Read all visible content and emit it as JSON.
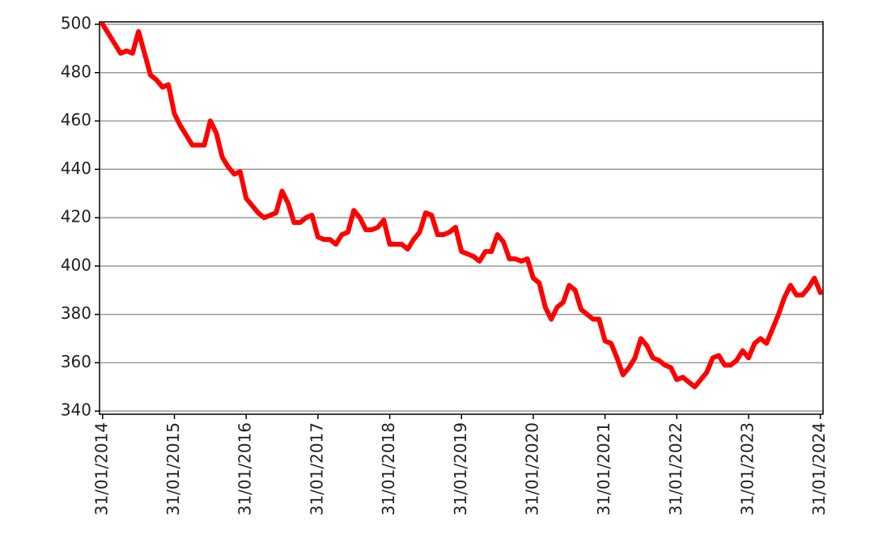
{
  "chart_data": {
    "type": "line",
    "x": [
      2014.083,
      2014.167,
      2014.25,
      2014.333,
      2014.417,
      2014.5,
      2014.583,
      2014.667,
      2014.75,
      2014.833,
      2014.917,
      2015,
      2015.083,
      2015.167,
      2015.25,
      2015.333,
      2015.417,
      2015.5,
      2015.583,
      2015.667,
      2015.75,
      2015.833,
      2015.917,
      2016,
      2016.083,
      2016.167,
      2016.25,
      2016.333,
      2016.417,
      2016.5,
      2016.583,
      2016.667,
      2016.75,
      2016.833,
      2016.917,
      2017,
      2017.083,
      2017.167,
      2017.25,
      2017.333,
      2017.417,
      2017.5,
      2017.583,
      2017.667,
      2017.75,
      2017.833,
      2017.917,
      2018,
      2018.083,
      2018.167,
      2018.25,
      2018.333,
      2018.417,
      2018.5,
      2018.583,
      2018.667,
      2018.75,
      2018.833,
      2018.917,
      2019,
      2019.083,
      2019.167,
      2019.25,
      2019.333,
      2019.417,
      2019.5,
      2019.583,
      2019.667,
      2019.75,
      2019.833,
      2019.917,
      2020,
      2020.083,
      2020.167,
      2020.25,
      2020.333,
      2020.417,
      2020.5,
      2020.583,
      2020.667,
      2020.75,
      2020.833,
      2020.917,
      2021,
      2021.083,
      2021.167,
      2021.25,
      2021.333,
      2021.417,
      2021.5,
      2021.583,
      2021.667,
      2021.75,
      2021.833,
      2021.917,
      2022,
      2022.083,
      2022.167,
      2022.25,
      2022.333,
      2022.417,
      2022.5,
      2022.583,
      2022.667,
      2022.75,
      2022.833,
      2022.917,
      2023,
      2023.083,
      2023.167,
      2023.25,
      2023.333,
      2023.417,
      2023.5,
      2023.583,
      2023.667,
      2023.75,
      2023.833,
      2023.917,
      2024,
      2024.083
    ],
    "series": [
      {
        "color": "#ff0000",
        "values": [
          500,
          496,
          492,
          488,
          489,
          488,
          497,
          488,
          479,
          477,
          474,
          475,
          463,
          458,
          454,
          450,
          450,
          450,
          460,
          455,
          445,
          441,
          438,
          439,
          428,
          425,
          422,
          420,
          421,
          422,
          431,
          426,
          418,
          418,
          420,
          421,
          412,
          411,
          411,
          409,
          413,
          414,
          423,
          420,
          415,
          415,
          416,
          419,
          409,
          409,
          409,
          407,
          411,
          414,
          422,
          421,
          413,
          413,
          414,
          416,
          406,
          405,
          404,
          402,
          406,
          406,
          413,
          410,
          403,
          403,
          402,
          403,
          395,
          393,
          383,
          378,
          383,
          385,
          392,
          390,
          382,
          380,
          378,
          378,
          369,
          368,
          362,
          355,
          358,
          362,
          370,
          367,
          362,
          361,
          359,
          358,
          353,
          354,
          352,
          350,
          353,
          356,
          362,
          363,
          359,
          359,
          361,
          365,
          362,
          368,
          370,
          368,
          374,
          380,
          387,
          392,
          388,
          388,
          391,
          395,
          389
        ]
      }
    ],
    "xlim": [
      2014.04,
      2024.12
    ],
    "xticks": [
      {
        "value": 2014.083,
        "label": "31/01/2014"
      },
      {
        "value": 2015.083,
        "label": "31/01/2015"
      },
      {
        "value": 2016.083,
        "label": "31/01/2016"
      },
      {
        "value": 2017.083,
        "label": "31/01/2017"
      },
      {
        "value": 2018.083,
        "label": "31/01/2018"
      },
      {
        "value": 2019.083,
        "label": "31/01/2019"
      },
      {
        "value": 2020.083,
        "label": "31/01/2020"
      },
      {
        "value": 2021.083,
        "label": "31/01/2021"
      },
      {
        "value": 2022.083,
        "label": "31/01/2022"
      },
      {
        "value": 2023.083,
        "label": "31/01/2023"
      },
      {
        "value": 2024.083,
        "label": "31/01/2024"
      }
    ],
    "ylim": [
      338.7,
      501
    ],
    "yticks": [
      340,
      360,
      380,
      400,
      420,
      440,
      460,
      480,
      500
    ],
    "grid": true
  }
}
